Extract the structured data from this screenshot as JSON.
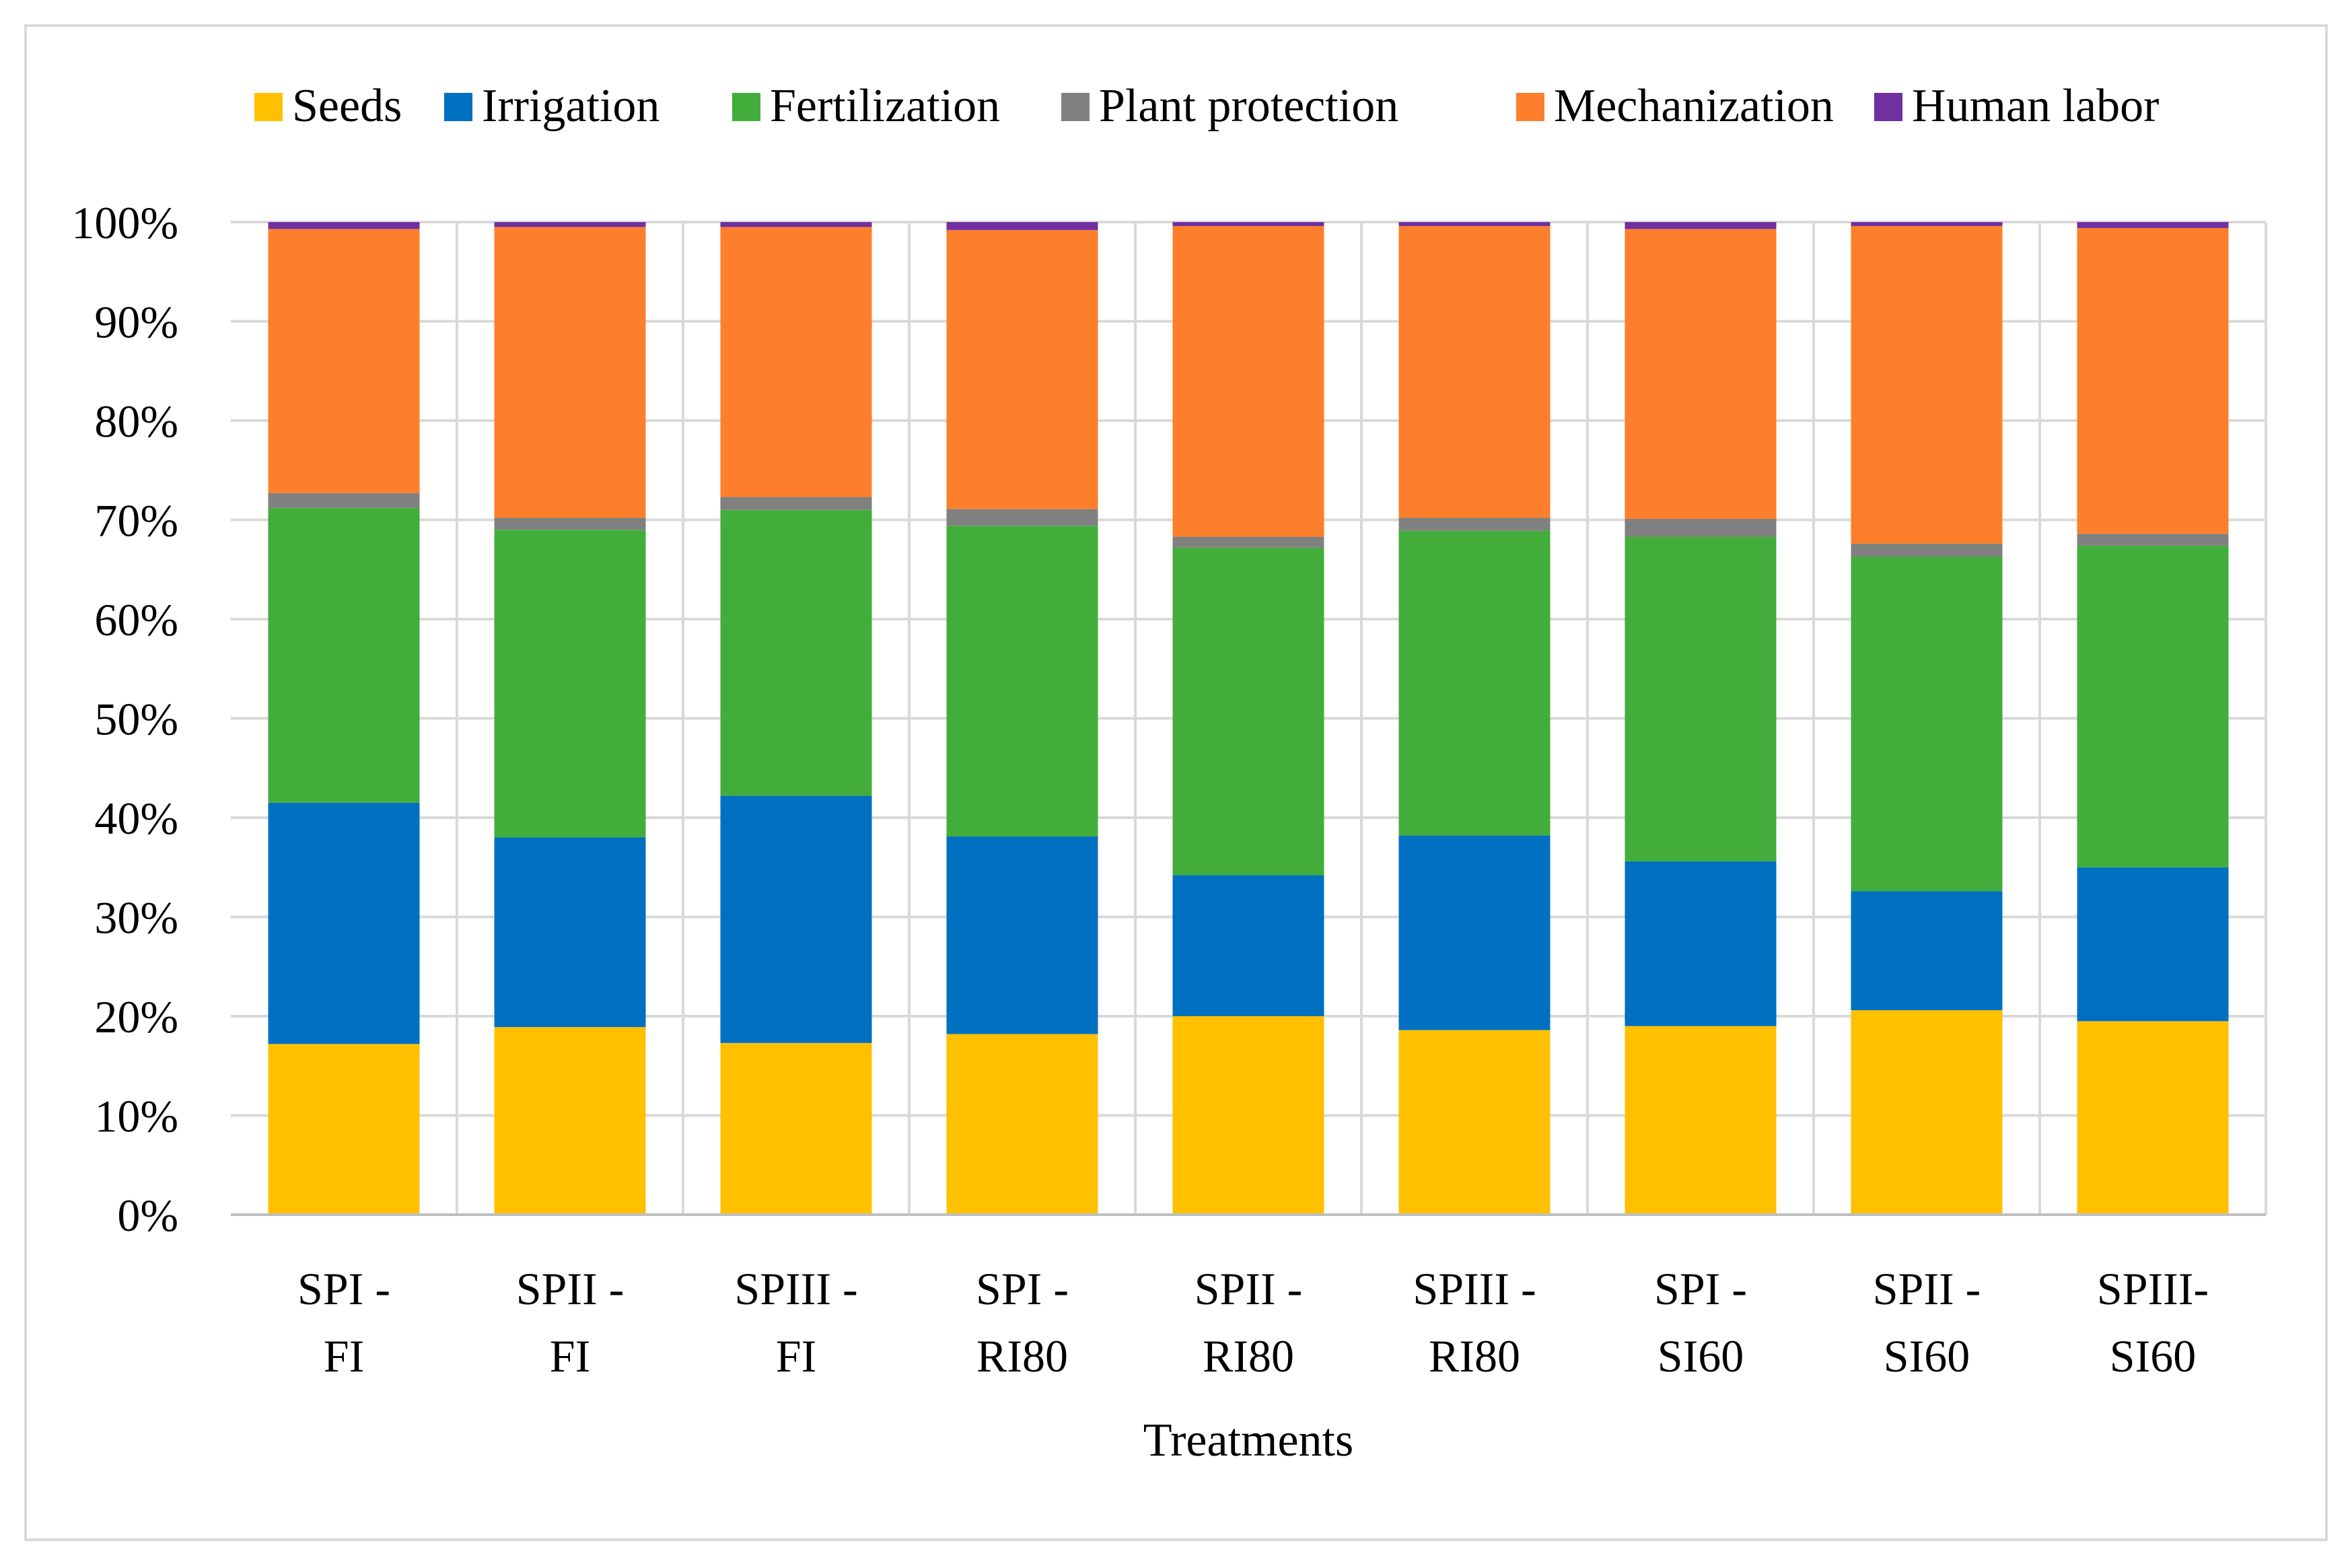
{
  "chart_data": {
    "type": "bar",
    "stacked": true,
    "normalized": true,
    "title": "",
    "xlabel": "Treatments",
    "ylabel": "",
    "ylim": [
      0,
      100
    ],
    "y_ticks": [
      "0%",
      "10%",
      "20%",
      "30%",
      "40%",
      "50%",
      "60%",
      "70%",
      "80%",
      "90%",
      "100%"
    ],
    "legend_position": "top",
    "categories": [
      [
        "SPI -",
        "FI"
      ],
      [
        "SPII -",
        "FI"
      ],
      [
        "SPIII -",
        "FI"
      ],
      [
        "SPI -",
        "RI80"
      ],
      [
        "SPII -",
        "RI80"
      ],
      [
        "SPIII -",
        "RI80"
      ],
      [
        "SPI  -",
        "SI60"
      ],
      [
        "SPII -",
        "SI60"
      ],
      [
        "SPIII-",
        "SI60"
      ]
    ],
    "series": [
      {
        "name": "Seeds",
        "color": "#ffc000",
        "values": [
          17.2,
          18.9,
          17.3,
          18.2,
          20.0,
          18.6,
          19.0,
          20.6,
          19.5
        ]
      },
      {
        "name": "Irrigation",
        "color": "#0070c0",
        "values": [
          24.3,
          19.1,
          24.9,
          19.9,
          14.2,
          19.6,
          16.6,
          12.0,
          15.5
        ]
      },
      {
        "name": "Fertilization",
        "color": "#43ad3c",
        "values": [
          29.7,
          31.0,
          28.8,
          31.3,
          33.0,
          30.7,
          32.7,
          33.7,
          32.4
        ]
      },
      {
        "name": "Plant protection",
        "color": "#808080",
        "values": [
          1.5,
          1.2,
          1.3,
          1.7,
          1.1,
          1.3,
          1.8,
          1.3,
          1.2
        ]
      },
      {
        "name": "Mechanization",
        "color": "#fd7f2b",
        "values": [
          26.6,
          29.3,
          27.2,
          28.1,
          31.3,
          29.4,
          29.2,
          32.0,
          30.8
        ]
      },
      {
        "name": "Human labor",
        "color": "#7030a0",
        "values": [
          0.7,
          0.5,
          0.5,
          0.8,
          0.4,
          0.4,
          0.7,
          0.4,
          0.6
        ]
      }
    ]
  }
}
